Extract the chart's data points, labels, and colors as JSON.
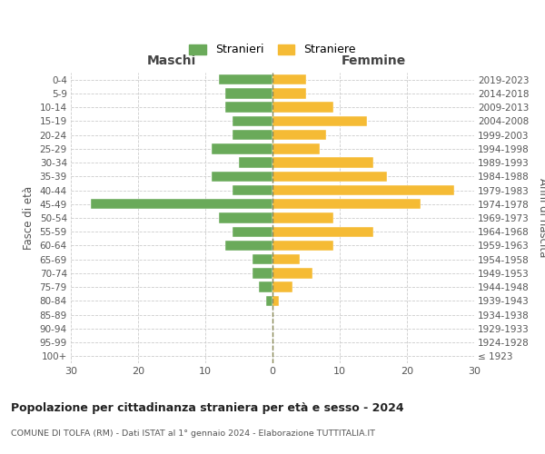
{
  "age_groups": [
    "100+",
    "95-99",
    "90-94",
    "85-89",
    "80-84",
    "75-79",
    "70-74",
    "65-69",
    "60-64",
    "55-59",
    "50-54",
    "45-49",
    "40-44",
    "35-39",
    "30-34",
    "25-29",
    "20-24",
    "15-19",
    "10-14",
    "5-9",
    "0-4"
  ],
  "birth_years": [
    "≤ 1923",
    "1924-1928",
    "1929-1933",
    "1934-1938",
    "1939-1943",
    "1944-1948",
    "1949-1953",
    "1954-1958",
    "1959-1963",
    "1964-1968",
    "1969-1973",
    "1974-1978",
    "1979-1983",
    "1984-1988",
    "1989-1993",
    "1994-1998",
    "1999-2003",
    "2004-2008",
    "2009-2013",
    "2014-2018",
    "2019-2023"
  ],
  "maschi": [
    0,
    0,
    0,
    0,
    1,
    2,
    3,
    3,
    7,
    6,
    8,
    27,
    6,
    9,
    5,
    9,
    6,
    6,
    7,
    7,
    8
  ],
  "femmine": [
    0,
    0,
    0,
    0,
    1,
    3,
    6,
    4,
    9,
    15,
    9,
    22,
    27,
    17,
    15,
    7,
    8,
    14,
    9,
    5,
    5
  ],
  "maschi_color": "#6aaa5a",
  "femmine_color": "#f5bb35",
  "background_color": "#ffffff",
  "grid_color": "#cccccc",
  "title": "Popolazione per cittadinanza straniera per età e sesso - 2024",
  "subtitle": "COMUNE DI TOLFA (RM) - Dati ISTAT al 1° gennaio 2024 - Elaborazione TUTTITALIA.IT",
  "maschi_label": "Stranieri",
  "femmine_label": "Straniere",
  "xlabel_left": "Maschi",
  "xlabel_right": "Femmine",
  "ylabel_left": "Fasce di età",
  "ylabel_right": "Anni di nascita",
  "xlim": 30
}
